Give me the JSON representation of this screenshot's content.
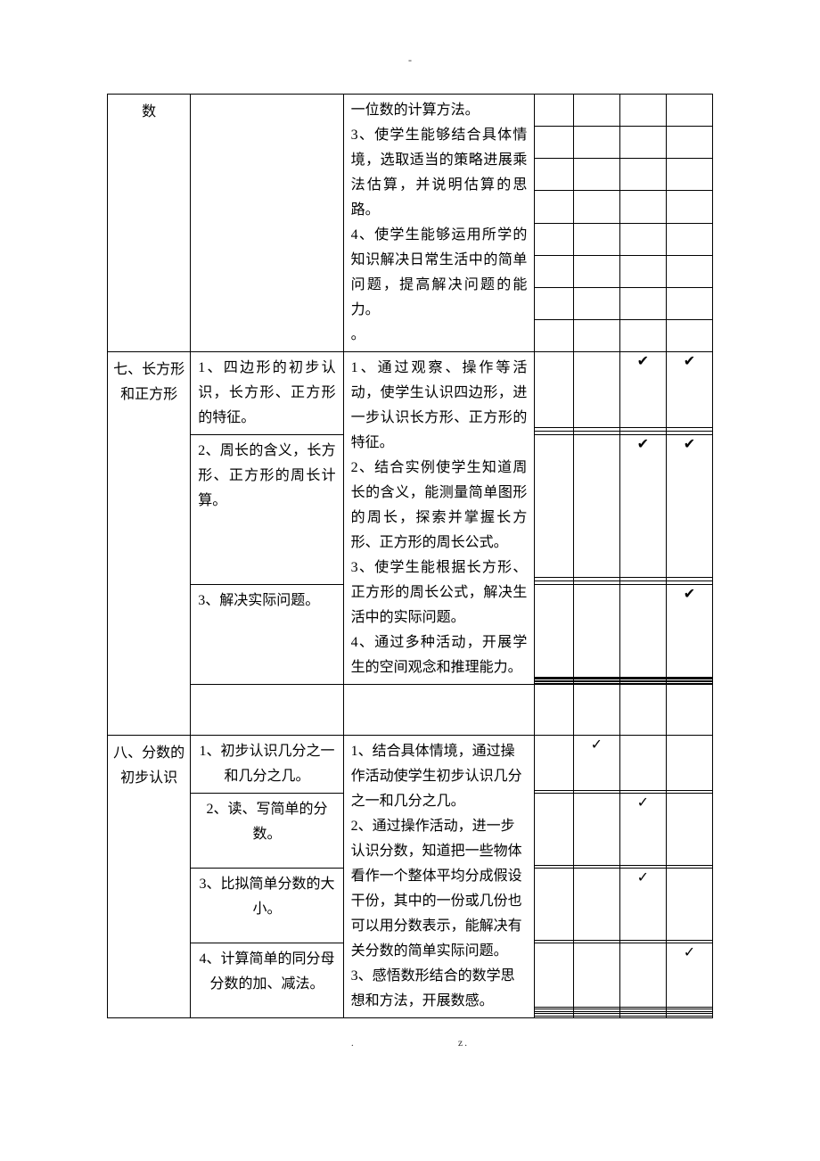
{
  "top_dash": "-",
  "bottom_left": ".",
  "bottom_right": "z.",
  "checkmark": "✔",
  "checkmark2": "✓",
  "section_top": {
    "unit_label": "数",
    "goal_text": "一位数的计算方法。\n3、使学生能够结合具体情境，选取适当的策略进展乘法估算，并说明估算的思路。\n4、使学生能够运用所学的知识解决日常生活中的简单问题，提高解决问题的能力。\n。"
  },
  "section_seven": {
    "unit_label": "七、长方形和正方形",
    "know_rows": [
      "1、四边形的初步认识，长方形、正方形的特征。",
      "2、周长的含义，长方形、正方形的周长计算。",
      "3、解决实际问题。"
    ],
    "goal_text": "1、通过观察、操作等活动，使学生认识四边形，进一步认识长方形、正方形的特征。\n2、结合实例使学生知道周长的含义，能测量简单图形的周长，探索并掌握长方形、正方形的周长公式。\n3、使学生能根据长方形、正方形的周长公式，解决生活中的实际问题。\n4、通过多种活动，开展学生的空间观念和推理能力。",
    "checks": [
      {
        "c": "",
        "d": "",
        "e": "✔",
        "f": "✔"
      },
      {
        "c": "",
        "d": "",
        "e": "✔",
        "f": "✔"
      },
      {
        "c": "",
        "d": "",
        "e": "",
        "f": "✔"
      }
    ]
  },
  "section_eight": {
    "unit_label": "八、分数的初步认识",
    "know_rows": [
      "1、初步认识几分之一和几分之几。",
      "2、读、写简单的分数。",
      "3、比拟简单分数的大小。",
      "4、计算简单的同分母分数的加、减法。"
    ],
    "goal_text": "1、结合具体情境，通过操作活动使学生初步认识几分之一和几分之几。\n2、通过操作活动，进一步认识分数，知道把一些物体看作一个整体平均分成假设干份，其中的一份或几份也可以用分数表示，能解决有关分数的简单实际问题。\n3、感悟数形结合的数学思想和方法，开展数感。",
    "checks": [
      {
        "c": "",
        "d": "✓",
        "e": "",
        "f": ""
      },
      {
        "c": "",
        "d": "",
        "e": "✓",
        "f": ""
      },
      {
        "c": "",
        "d": "",
        "e": "✓",
        "f": ""
      },
      {
        "c": "",
        "d": "",
        "e": "",
        "f": "✓"
      }
    ]
  }
}
